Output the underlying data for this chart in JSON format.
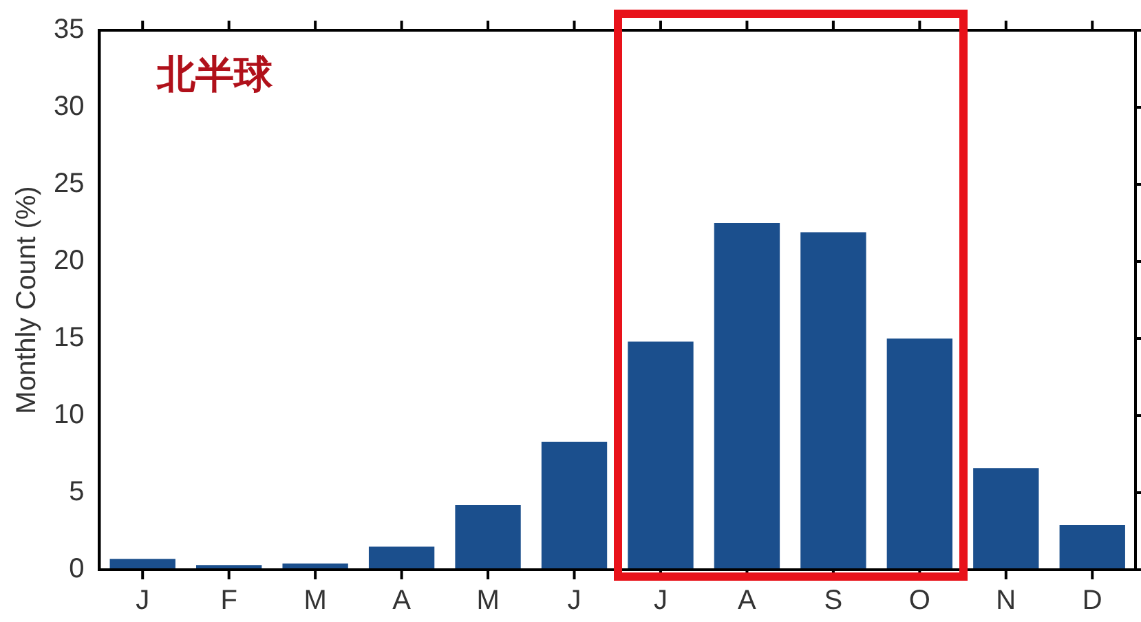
{
  "chart_data": {
    "type": "bar",
    "ylabel": "Monthly Count (%)",
    "annotations": [
      "北半球"
    ],
    "categories": [
      "J",
      "F",
      "M",
      "A",
      "M",
      "J",
      "J",
      "A",
      "S",
      "O",
      "N",
      "D"
    ],
    "values": [
      0.7,
      0.3,
      0.4,
      1.5,
      4.2,
      8.3,
      14.8,
      22.5,
      21.9,
      15.0,
      6.6,
      2.9
    ],
    "color": "#1b4f8d",
    "ylim": [
      0,
      35
    ],
    "yticks": [
      0,
      5,
      10,
      15,
      20,
      25,
      30,
      35
    ],
    "grid": false,
    "legend": false
  }
}
